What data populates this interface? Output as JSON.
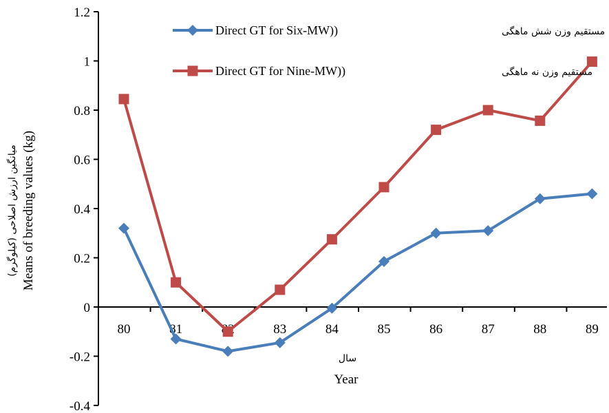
{
  "chart_data": {
    "type": "line",
    "x": [
      "80",
      "81",
      "82",
      "83",
      "84",
      "85",
      "86",
      "87",
      "88",
      "89"
    ],
    "series": [
      {
        "name": "Direct GT for Six-MW))",
        "name_fa": "مستقیم وزن شش ماهگی",
        "color": "#4a7ebb",
        "marker": "diamond",
        "values": [
          0.32,
          -0.13,
          -0.18,
          -0.145,
          -0.005,
          0.185,
          0.3,
          0.31,
          0.44,
          0.46
        ]
      },
      {
        "name": "Direct GT for Nine-MW))",
        "name_fa": "مستقیم وزن نه ماهگی",
        "color": "#be4b48",
        "marker": "square",
        "values": [
          0.845,
          0.1,
          -0.1,
          0.07,
          0.275,
          0.487,
          0.72,
          0.8,
          0.757,
          0.997
        ]
      }
    ],
    "y_ticks": [
      "-0.4",
      "-0.2",
      "0",
      "0.2",
      "0.4",
      "0.6",
      "0.8",
      "1",
      "1.2"
    ],
    "ylim": [
      -0.4,
      1.2
    ],
    "xlabel": "Year",
    "xlabel_fa": "سال",
    "ylabel": "Means of breeding values (kg)",
    "ylabel_fa": "میانگین ارزش اصلاحی (کیلوگرم)",
    "legend_position": "top-center",
    "grid": false
  }
}
